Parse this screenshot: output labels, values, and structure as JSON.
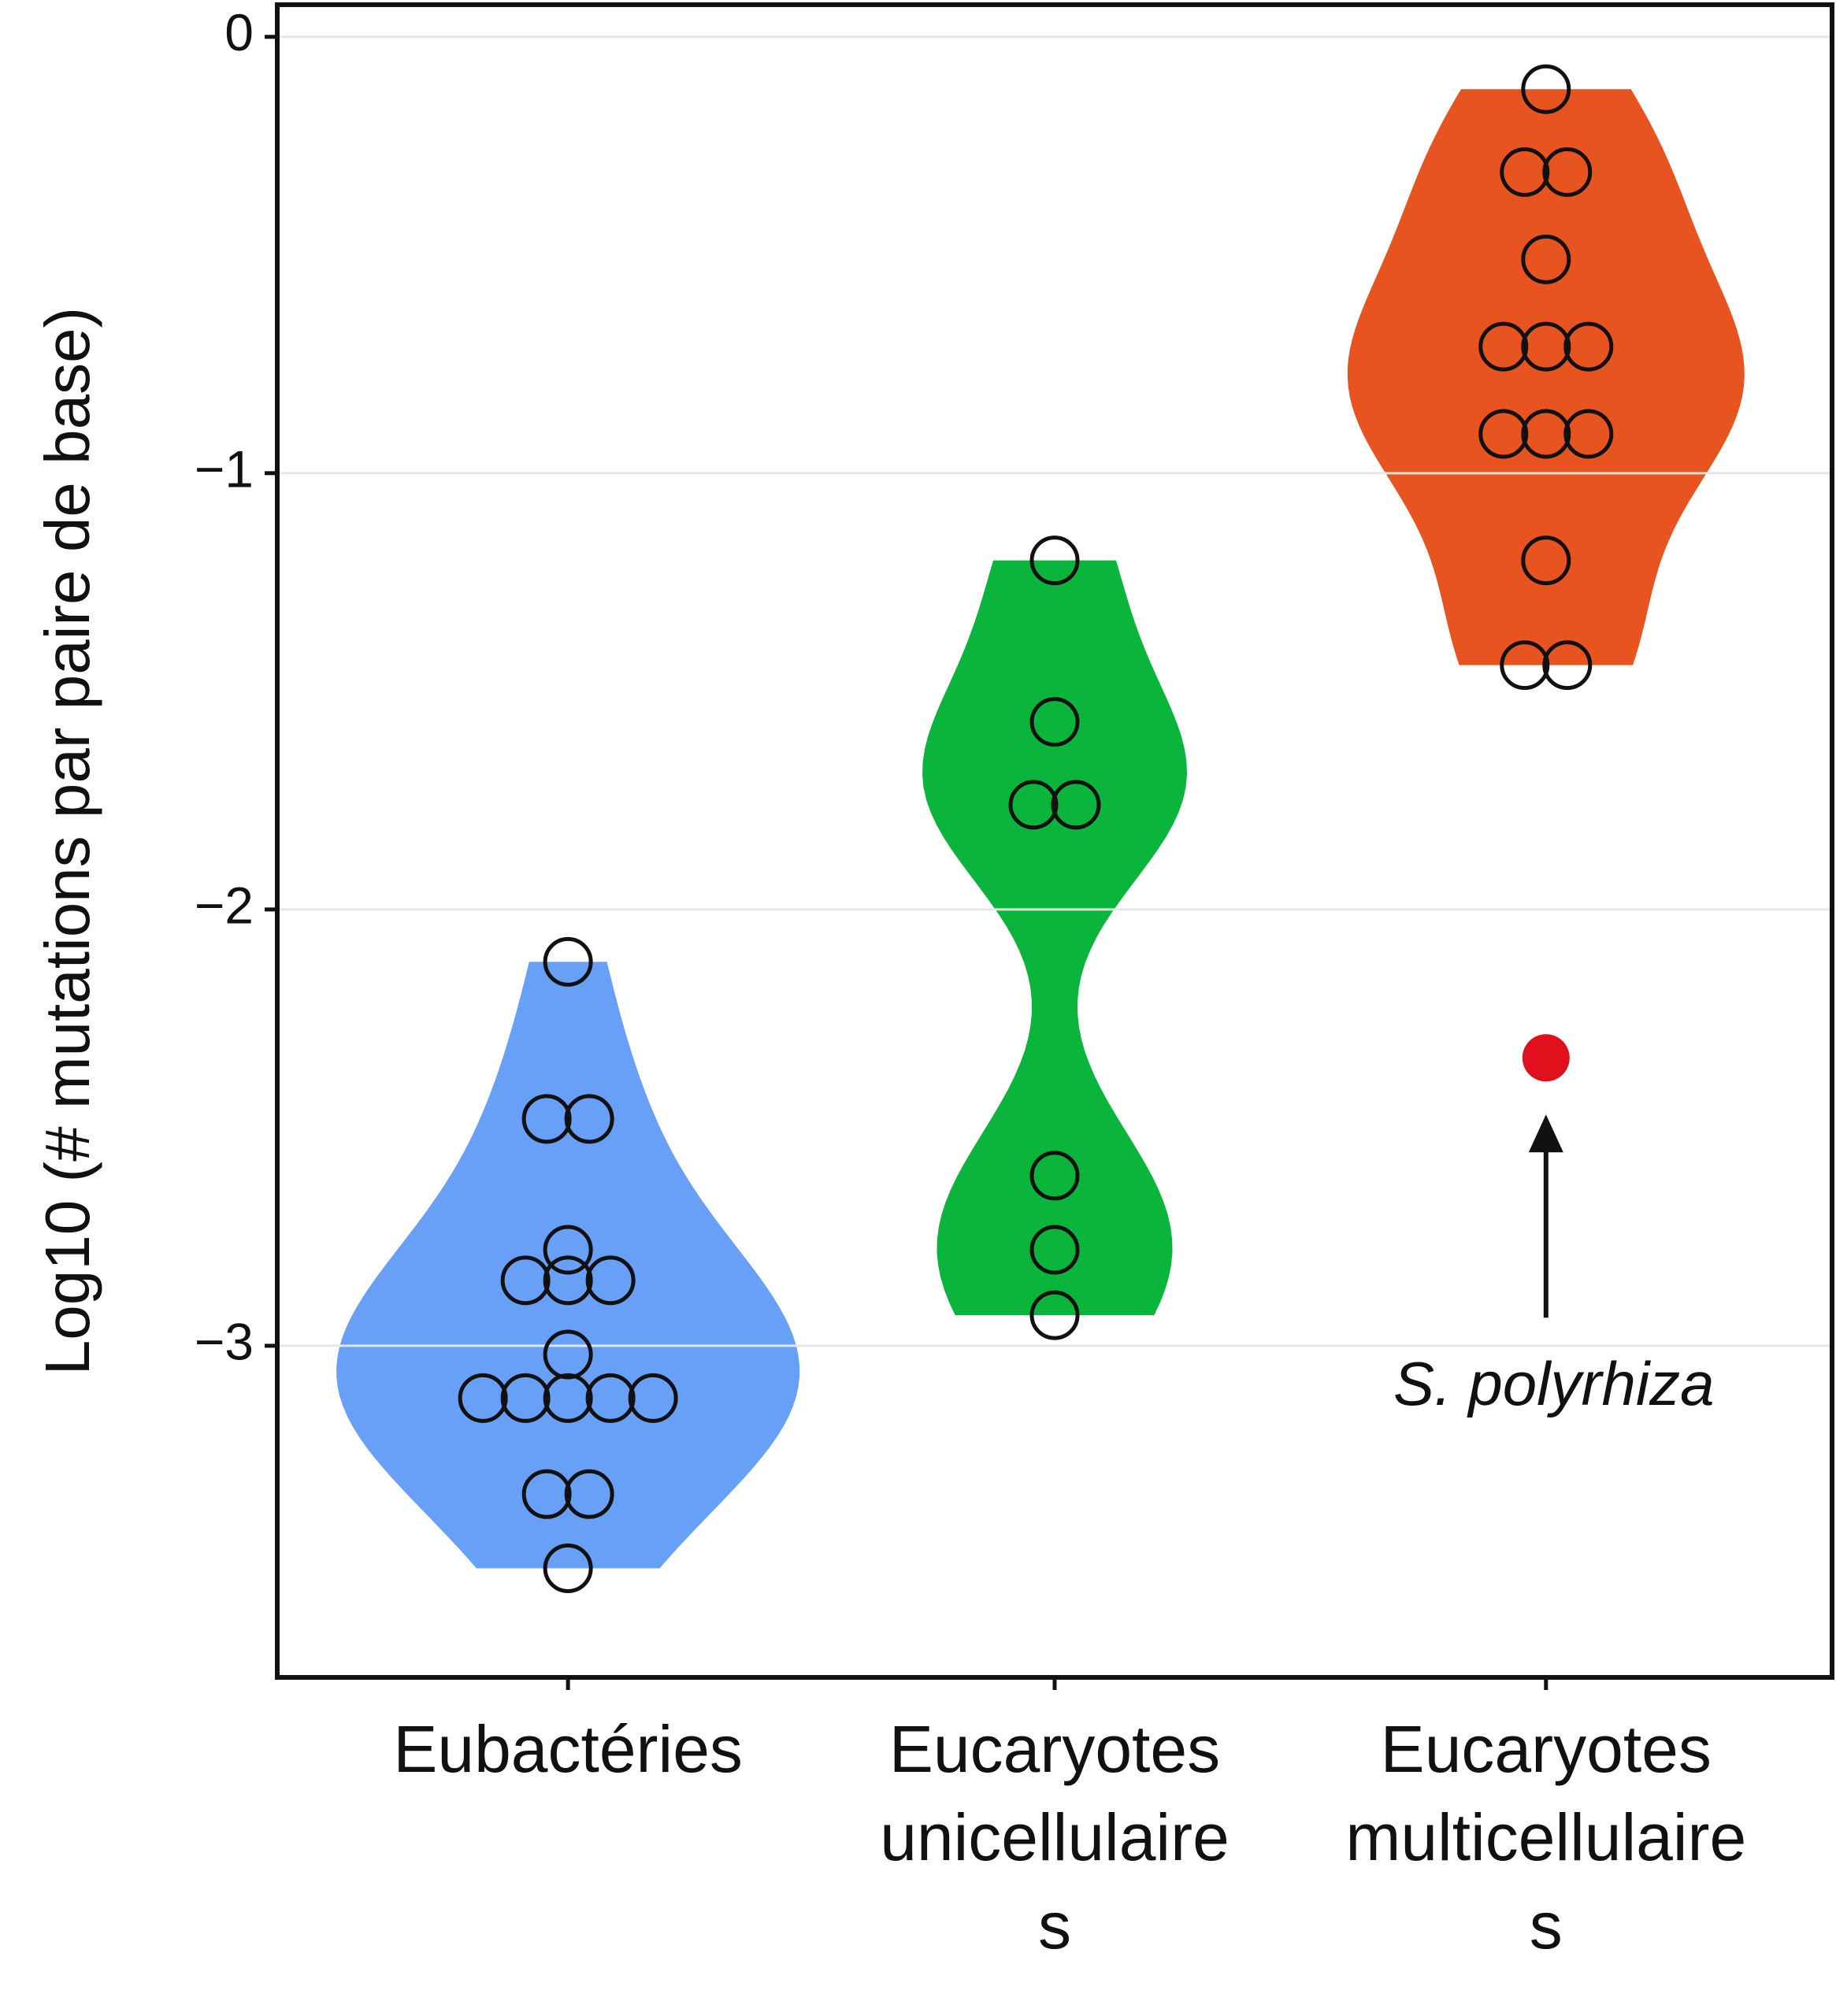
{
  "chart_data": {
    "type": "violin",
    "y_label": "Log10 (# mutations par paire de base)",
    "categories": [
      "Eubactéries",
      "Eucaryotes unicellulaire s",
      "Eucaryotes multicellulaire s"
    ],
    "colors": [
      "#69a0f7",
      "#0bb53b",
      "#e8541f"
    ],
    "values": [
      [
        -2.12,
        -2.48,
        -2.48,
        -2.78,
        -2.85,
        -2.85,
        -2.85,
        -3.02,
        -3.12,
        -3.12,
        -3.12,
        -3.12,
        -3.12,
        -3.34,
        -3.34,
        -3.51
      ],
      [
        -1.2,
        -1.57,
        -1.76,
        -1.76,
        -2.61,
        -2.78,
        -2.93
      ],
      [
        -0.12,
        -0.31,
        -0.31,
        -0.51,
        -0.71,
        -0.71,
        -0.71,
        -0.91,
        -0.91,
        -0.91,
        -1.2,
        -1.44,
        -1.44
      ]
    ],
    "annotation": {
      "text": "S. polyrhiza",
      "value": -2.34,
      "category": "Eucaryotes multicellulaire s",
      "color": "#e0101c"
    },
    "ylim": [
      -3.76,
      0.07
    ],
    "yticks": [
      0,
      {
        "value": -1,
        "label": "−1"
      },
      {
        "value": -2,
        "label": "−2"
      },
      {
        "value": -3,
        "label": "−3"
      }
    ],
    "grid": true
  }
}
